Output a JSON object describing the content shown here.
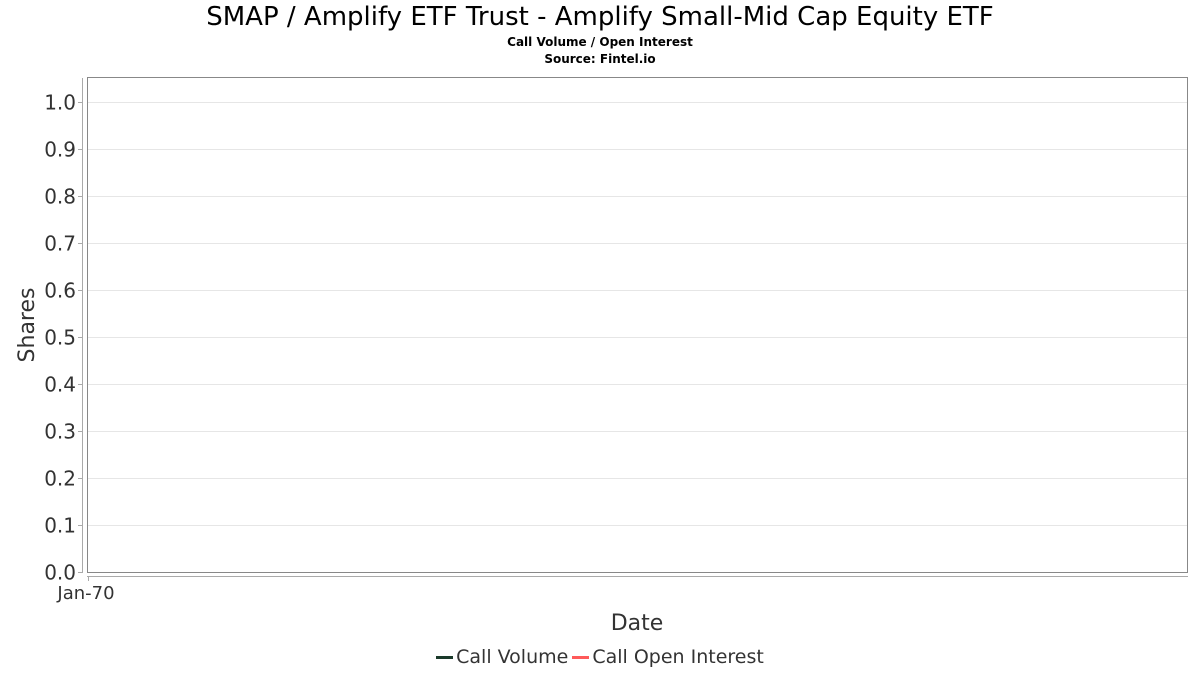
{
  "chart_data": {
    "type": "line",
    "title": "SMAP / Amplify ETF Trust - Amplify Small-Mid Cap Equity ETF",
    "subtitle": "Call Volume / Open Interest",
    "source": "Source: Fintel.io",
    "xlabel": "Date",
    "ylabel": "Shares",
    "x_ticks": [
      "Jan-70"
    ],
    "y_ticks": [
      "0.0",
      "0.1",
      "0.2",
      "0.3",
      "0.4",
      "0.5",
      "0.6",
      "0.7",
      "0.8",
      "0.9",
      "1.0"
    ],
    "ylim": [
      0,
      1.05
    ],
    "grid": true,
    "legend_position": "bottom",
    "series": [
      {
        "name": "Call Volume",
        "color": "#1a3a2a",
        "values": []
      },
      {
        "name": "Call Open Interest",
        "color": "#ff5a5a",
        "values": []
      }
    ]
  }
}
